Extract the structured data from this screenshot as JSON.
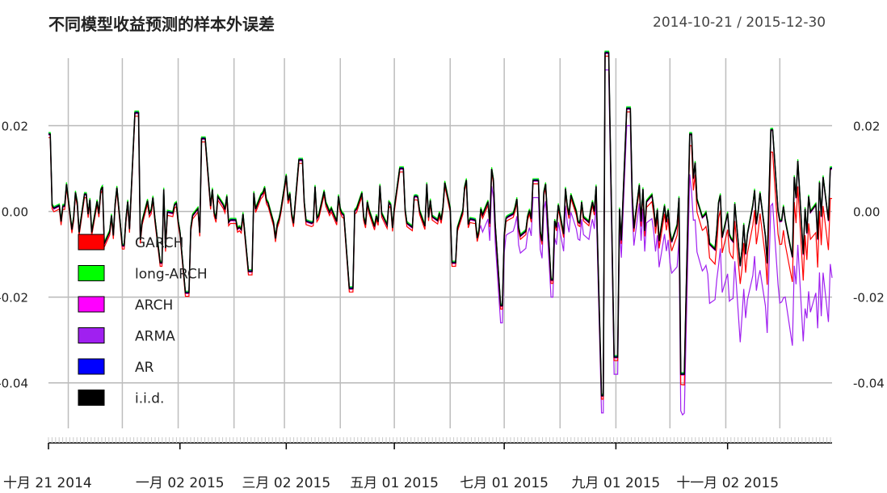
{
  "chart_data": {
    "type": "line",
    "title": "不同模型收益预测的样本外误差",
    "date_range": "2014-10-21 / 2015-12-30",
    "x_range": [
      "2014-10-21",
      "2015-12-30"
    ],
    "ylim": [
      -0.054,
      0.038
    ],
    "y_ticks": [
      {
        "value": 0.02,
        "label": "0.02"
      },
      {
        "value": 0.0,
        "label": "0.00"
      },
      {
        "value": -0.02,
        "label": "-0.02"
      },
      {
        "value": -0.04,
        "label": "-0.04"
      }
    ],
    "x_ticks": [
      {
        "date": "2014-10-21",
        "label": "十月 21 2014"
      },
      {
        "date": "2015-01-02",
        "label": "一月 02 2015"
      },
      {
        "date": "2015-03-02",
        "label": "三月 02 2015"
      },
      {
        "date": "2015-05-01",
        "label": "五月 01 2015"
      },
      {
        "date": "2015-07-01",
        "label": "七月 01 2015"
      },
      {
        "date": "2015-09-01",
        "label": "九月 01 2015"
      },
      {
        "date": "2015-11-02",
        "label": "十一月 02 2015"
      }
    ],
    "grid": true,
    "legend_position": "left",
    "series": [
      {
        "name": "GARCH",
        "color": "#ff0000"
      },
      {
        "name": "long-ARCH",
        "color": "#00ff00"
      },
      {
        "name": "ARCH",
        "color": "#ff00ff"
      },
      {
        "name": "ARMA",
        "color": "#a020f0"
      },
      {
        "name": "AR",
        "color": "#0000ff"
      },
      {
        "name": "i.i.d.",
        "color": "#000000"
      }
    ],
    "base_error_samples": [
      {
        "date": "2014-10-21",
        "value": 0.018
      },
      {
        "date": "2014-11-10",
        "value": 0.004
      },
      {
        "date": "2014-12-01",
        "value": -0.008
      },
      {
        "date": "2014-12-09",
        "value": 0.023
      },
      {
        "date": "2014-12-22",
        "value": -0.012
      },
      {
        "date": "2015-01-06",
        "value": -0.019
      },
      {
        "date": "2015-01-15",
        "value": 0.017
      },
      {
        "date": "2015-02-10",
        "value": -0.014
      },
      {
        "date": "2015-03-10",
        "value": 0.012
      },
      {
        "date": "2015-04-07",
        "value": -0.018
      },
      {
        "date": "2015-05-05",
        "value": 0.01
      },
      {
        "date": "2015-06-03",
        "value": -0.012
      },
      {
        "date": "2015-06-29",
        "value": -0.022
      },
      {
        "date": "2015-07-27",
        "value": -0.016
      },
      {
        "date": "2015-08-24",
        "value": -0.043
      },
      {
        "date": "2015-08-27",
        "value": 0.037
      },
      {
        "date": "2015-09-01",
        "value": -0.034
      },
      {
        "date": "2015-09-08",
        "value": 0.024
      },
      {
        "date": "2015-10-08",
        "value": -0.038
      },
      {
        "date": "2015-10-12",
        "value": 0.018
      },
      {
        "date": "2015-11-27",
        "value": 0.019
      },
      {
        "date": "2015-12-30",
        "value": 0.01
      }
    ]
  }
}
